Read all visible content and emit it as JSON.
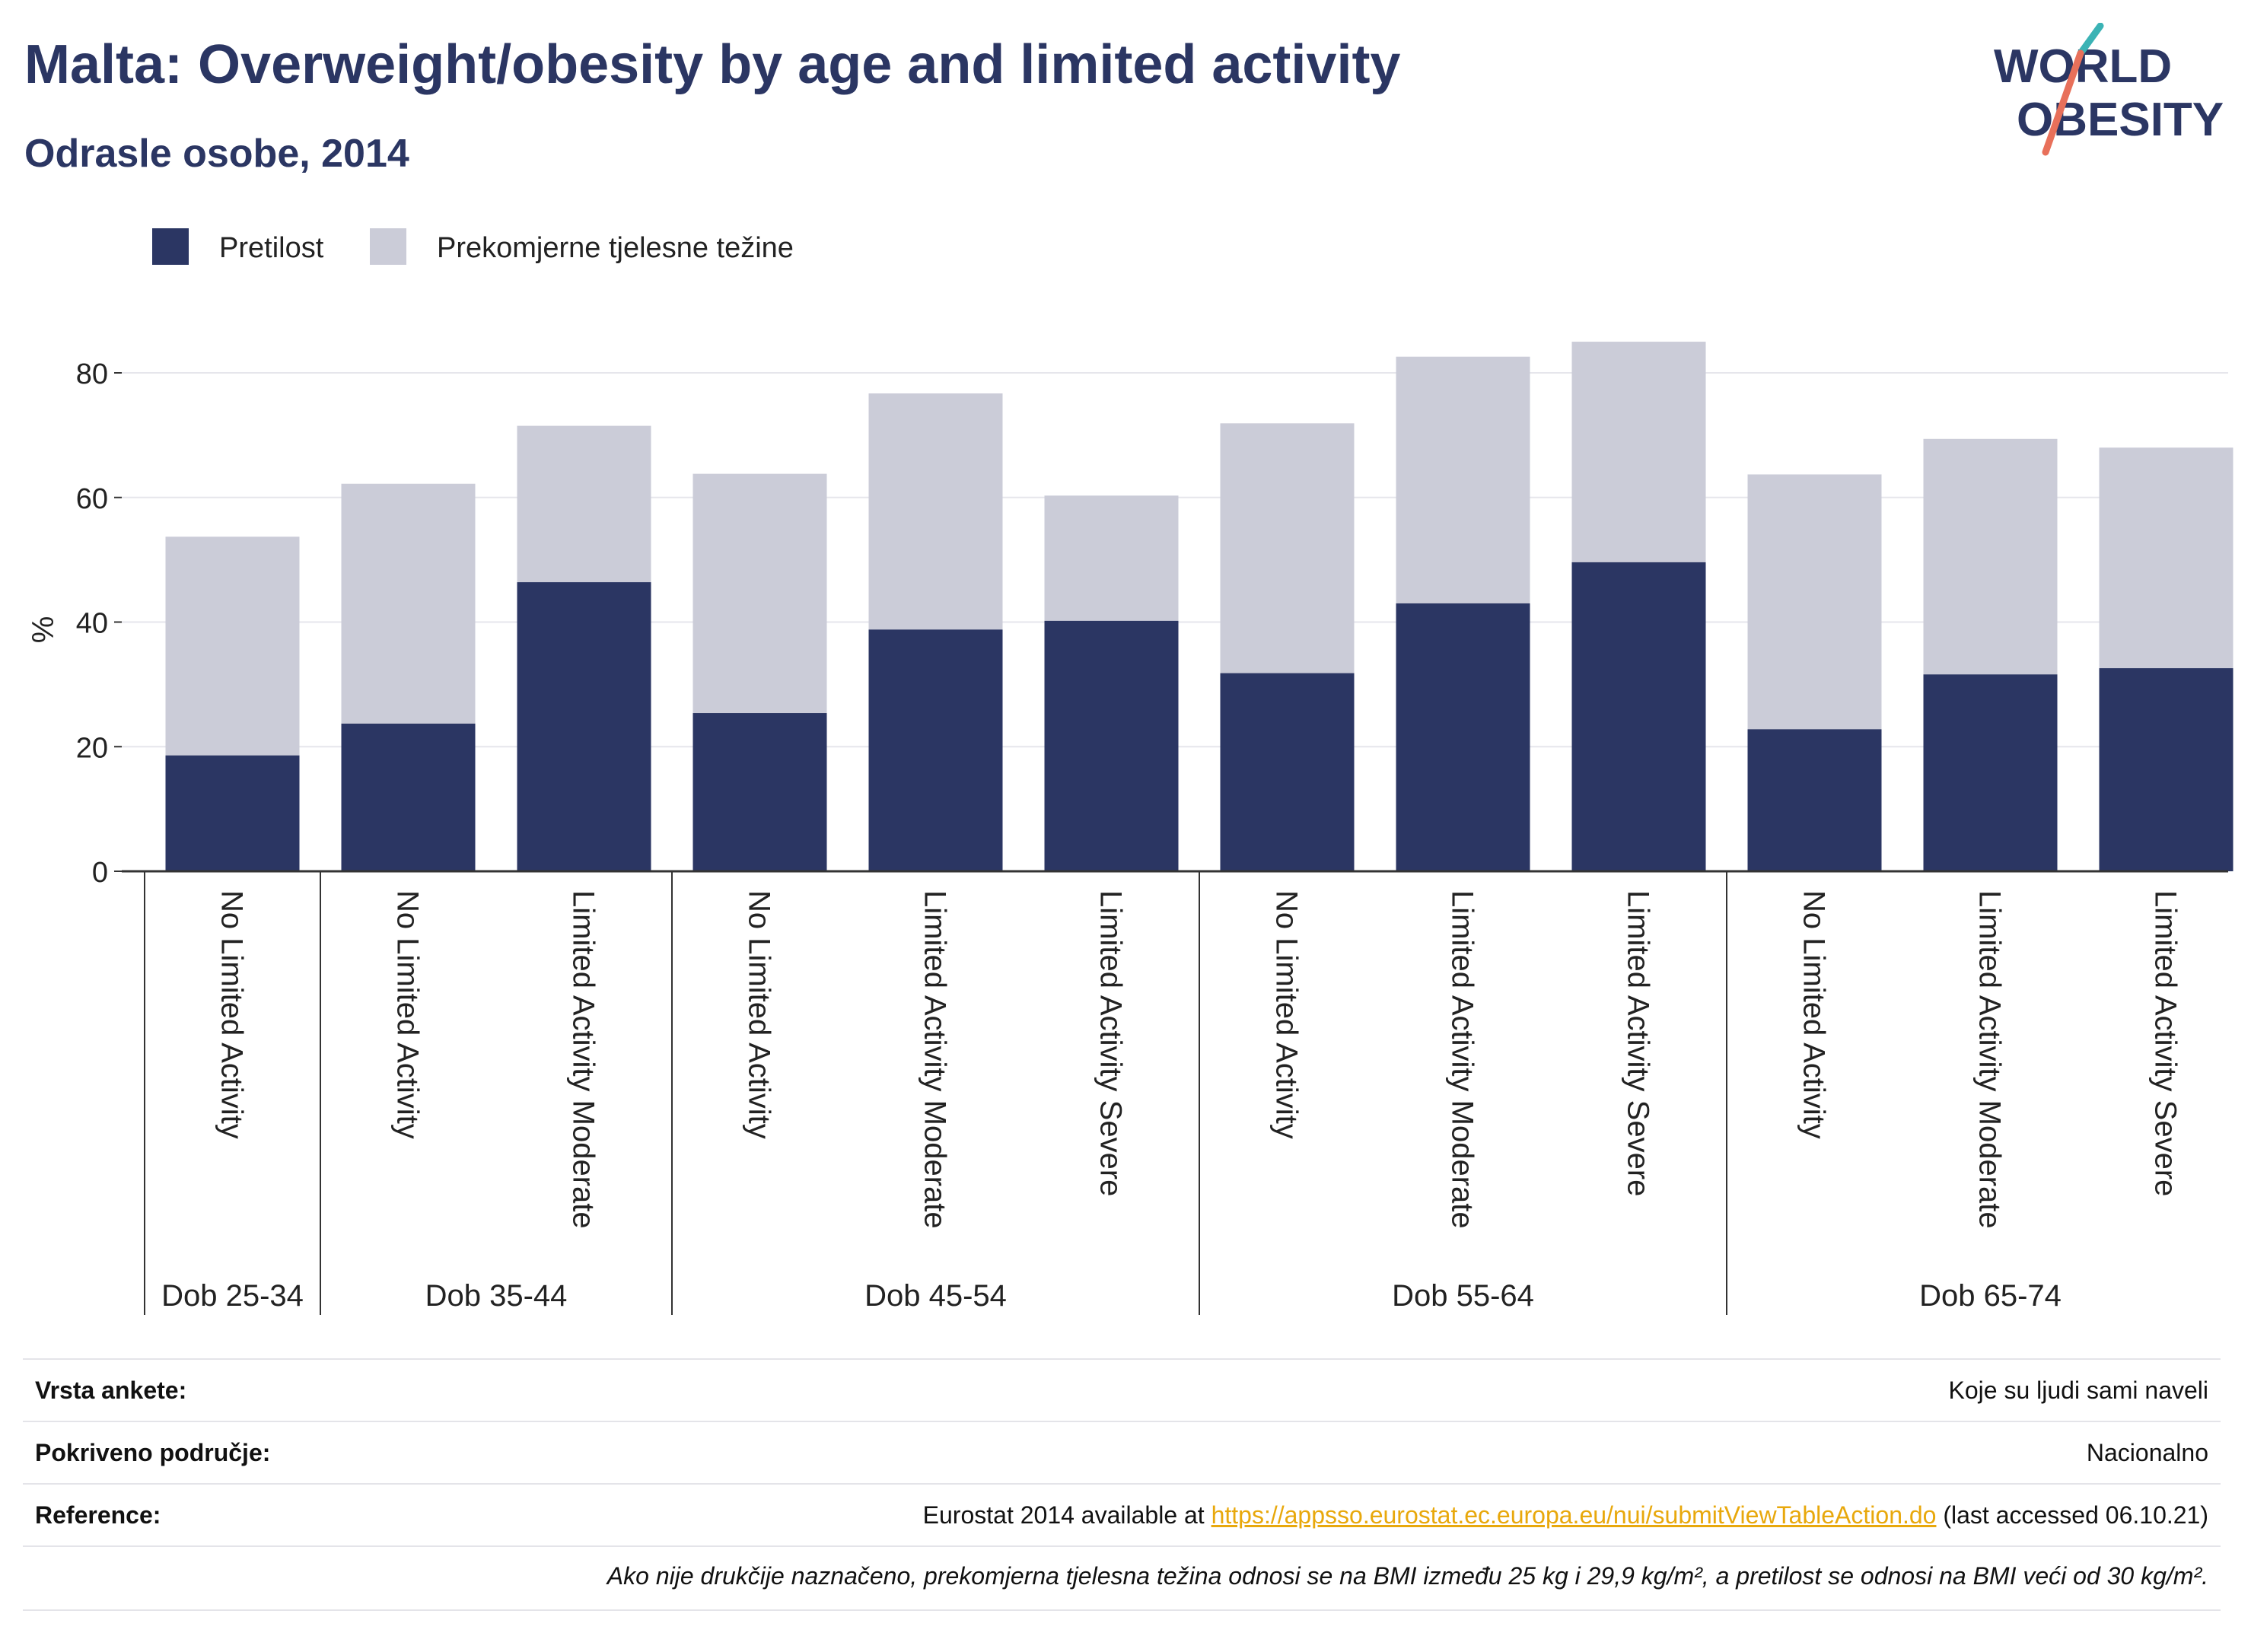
{
  "header": {
    "title": "Malta: Overweight/obesity by age and limited activity",
    "subtitle": "Odrasle osobe, 2014"
  },
  "logo": {
    "line1": "WORLD",
    "line2": "OBESITY"
  },
  "colors": {
    "obesity": "#2b3663",
    "overweight": "#cbccd8",
    "text": "#2b3663",
    "accent_teal": "#3bb3b5",
    "accent_coral": "#e8705a"
  },
  "chart_data": {
    "type": "bar",
    "stacked": true,
    "ylabel": "%",
    "ylim": [
      0,
      90
    ],
    "yticks": [
      0,
      20,
      40,
      60,
      80
    ],
    "grid": true,
    "legend_position": "top-left",
    "categories": [
      "No Limited Activity",
      "No Limited Activity",
      "Limited Activity Moderate",
      "No Limited Activity",
      "Limited Activity Moderate",
      "Limited Activity Severe",
      "No Limited Activity",
      "Limited Activity Moderate",
      "Limited Activity Severe",
      "No Limited Activity",
      "Limited Activity Moderate",
      "Limited Activity Severe"
    ],
    "groups": [
      {
        "label": "Dob 25-34",
        "count": 1
      },
      {
        "label": "Dob 35-44",
        "count": 2
      },
      {
        "label": "Dob 45-54",
        "count": 3
      },
      {
        "label": "Dob 55-64",
        "count": 3
      },
      {
        "label": "Dob 65-74",
        "count": 3
      }
    ],
    "series": [
      {
        "name": "Pretilost",
        "values": [
          18.6,
          23.7,
          46.4,
          25.4,
          38.8,
          40.2,
          31.8,
          43.0,
          49.6,
          22.8,
          31.6,
          32.6
        ]
      },
      {
        "name": "Prekomjerne tjelesne težine",
        "values": [
          35.1,
          38.5,
          25.1,
          38.4,
          37.9,
          20.1,
          40.1,
          39.6,
          35.4,
          40.9,
          37.8,
          35.4
        ]
      }
    ]
  },
  "meta": {
    "survey_label": "Vrsta ankete:",
    "survey_value": "Koje su ljudi sami naveli",
    "coverage_label": "Pokriveno područje:",
    "coverage_value": "Nacionalno",
    "reference_label": "Reference:",
    "reference_prefix": "Eurostat 2014 available at ",
    "reference_link": "https://appsso.eurostat.ec.europa.eu/nui/submitViewTableAction.do",
    "reference_suffix": " (last accessed 06.10.21)",
    "note": "Ako nije drukčije naznačeno, prekomjerna tjelesna težina odnosi se na BMI između 25 kg i 29,9 kg/m², a pretilost se odnosi na BMI veći od 30 kg/m²."
  }
}
